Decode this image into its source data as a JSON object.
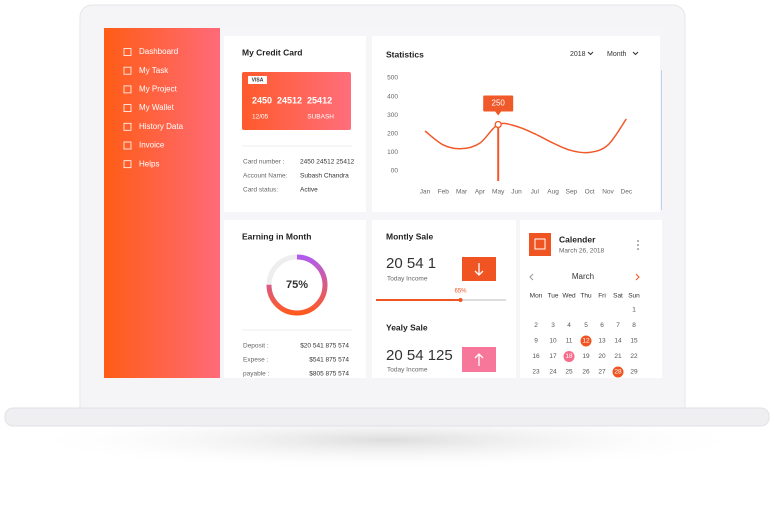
{
  "sidebar": {
    "menu": [
      "Dashboard",
      "My Task",
      "My Project",
      "My Wallet",
      "History Data",
      "Invoice",
      "Helps"
    ]
  },
  "credit_card": {
    "title": "My Credit Card",
    "card": {
      "brand": "VISA",
      "number": "2450  24512  25412",
      "expiry": "12/05",
      "holder": "SUBASH"
    },
    "details": [
      [
        "Card number :",
        "2450 24512 25412"
      ],
      [
        "Account Name:",
        "Subash Chandra"
      ],
      [
        "Card status:",
        "Active"
      ]
    ]
  },
  "statistics": {
    "type": "line",
    "title": "Statistics",
    "year": "2018",
    "period": "Month",
    "categories": [
      "Jan",
      "Feb",
      "Mar",
      "Apr",
      "May",
      "Jun",
      "Jul",
      "Aug",
      "Sep",
      "Oct",
      "Nov",
      "Dec"
    ],
    "values": [
      215,
      140,
      120,
      150,
      250,
      240,
      200,
      150,
      110,
      100,
      140,
      280
    ],
    "color": "#f0592a",
    "highlighted_category": "May",
    "ylim": [
      0,
      500
    ],
    "yticks": [
      {
        "value": 0,
        "label": "00"
      },
      100,
      200,
      300,
      400,
      500
    ]
  },
  "earning": {
    "title": "Earning in Month",
    "percent": 75,
    "percent_label": "75%",
    "rows": [
      [
        "Deposit :",
        "$20 541 875 574"
      ],
      [
        "Expese :",
        "$541 875 574"
      ],
      [
        "payable :",
        "$805 875 574"
      ]
    ]
  },
  "monthly_sale": {
    "title": "Montly Sale",
    "amount": "20 54 1",
    "caption": "Today Income",
    "progress": 65,
    "progress_label": "65%"
  },
  "yearly_sale": {
    "title": "Yealy Sale",
    "amount": "20 54 125",
    "caption": "Today Income"
  },
  "calendar": {
    "title": "Calender",
    "date": "March 26, 2018",
    "month": "March",
    "weekdays": [
      "Mon",
      "Tue",
      "Wed",
      "Thu",
      "Fri",
      "Sat",
      "Sun"
    ],
    "weeks": [
      [
        null,
        null,
        null,
        null,
        null,
        null,
        1
      ],
      [
        2,
        3,
        4,
        5,
        6,
        7,
        8
      ],
      [
        9,
        10,
        11,
        {
          "value": 12,
          "highlight": "#ef5422"
        },
        13,
        14,
        15
      ],
      [
        16,
        17,
        {
          "value": 18,
          "highlight": "#f76b8a"
        },
        19,
        20,
        21,
        22
      ],
      [
        23,
        24,
        25,
        26,
        27,
        {
          "value": 28,
          "highlight": "#ef5422"
        },
        29
      ]
    ]
  }
}
